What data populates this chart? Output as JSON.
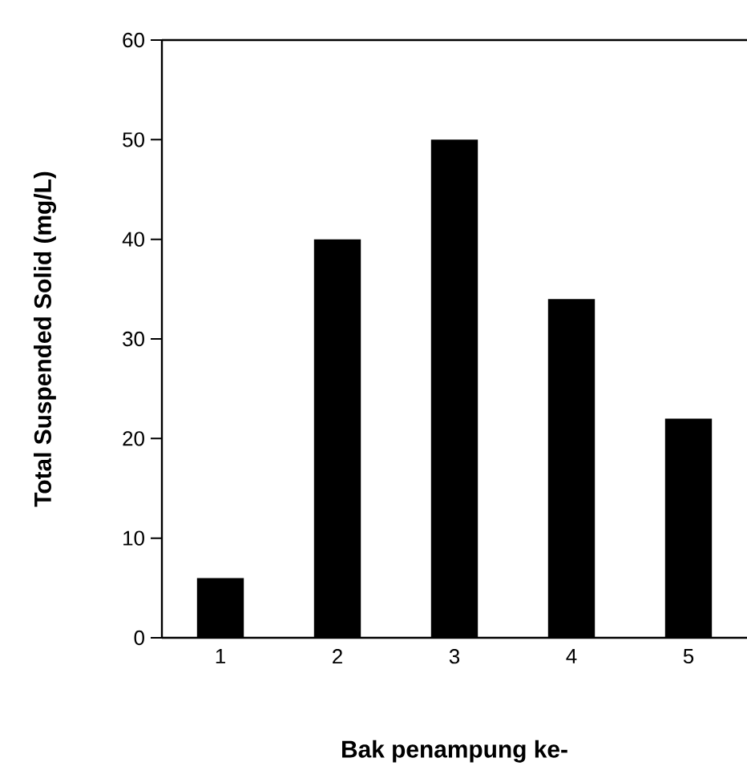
{
  "chart_data": {
    "type": "bar",
    "xlabel": "Bak penampung ke-",
    "ylabel": "Total Suspended Solid (mg/L)",
    "categories": [
      "1",
      "2",
      "3",
      "4",
      "5"
    ],
    "values": [
      6,
      40,
      50,
      34,
      22
    ],
    "color": "#000000",
    "ylim": [
      0,
      60
    ],
    "yticks": [
      0,
      10,
      20,
      30,
      40,
      50,
      60
    ]
  }
}
